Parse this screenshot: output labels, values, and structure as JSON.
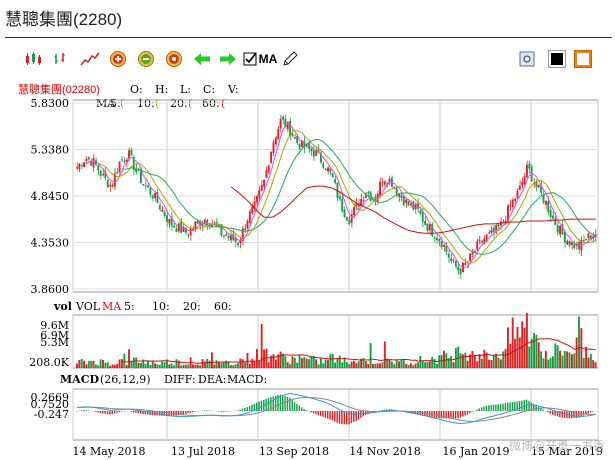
{
  "title": "慧聰集團(2280)",
  "toolbar": {
    "ma_label": "MA",
    "icons": [
      "candlestick-icon",
      "bar-icon",
      "line-icon",
      "zoom-in-icon",
      "zoom-out-icon",
      "reset-icon",
      "arrow-left-icon",
      "arrow-right-icon",
      "ma-checkbox-icon",
      "pencil-icon",
      "settings-icon",
      "black-theme-icon",
      "white-theme-icon"
    ]
  },
  "legend": {
    "stock": "慧聰集團(02280)",
    "o": "O:",
    "h": "H:",
    "l": "L:",
    "c": "C:",
    "v": "V:",
    "ma": "MA",
    "ma5": "5:",
    "ma10": "10:",
    "ma20": "20:",
    "ma60": "60:",
    "vol": "vol",
    "vol_label": "VOL",
    "vol_ma": "MA",
    "vol5": "5:",
    "vol10": "10:",
    "vol20": "20:",
    "vol60": "60:",
    "macd": "MACD",
    "macd_params": "(26,12,9)",
    "diff": "DIFF:",
    "dea": "DEA:",
    "macd_val": "MACD:"
  },
  "colors": {
    "up": "#e02020",
    "down": "#10a040",
    "ma5": "#ee44ee",
    "ma10": "#aaaa00",
    "ma20": "#22aa66",
    "ma60": "#d01010",
    "diff": "#3399cc",
    "dea": "#888888"
  },
  "chart_data": {
    "type": "line",
    "price_axis": [
      "5.8300",
      "5.3380",
      "4.8450",
      "4.3530",
      "3.8600"
    ],
    "price_range": [
      3.86,
      5.83
    ],
    "volume_axis": [
      "9.6M",
      "6.9M",
      "5.3M",
      "208.0K"
    ],
    "macd_axis": [
      "0.2669",
      "0.7520",
      "-0.247"
    ],
    "x_labels": [
      "14 May 2018",
      "13 Jul 2018",
      "13 Sep 2018",
      "14 Nov 2018",
      "16 Jan 2019",
      "15 Mar 2019"
    ],
    "price_anchors": [
      5.15,
      5.25,
      5.2,
      5.05,
      4.95,
      5.2,
      5.3,
      5.1,
      4.95,
      4.85,
      4.7,
      4.55,
      4.5,
      4.45,
      4.55,
      4.6,
      4.55,
      4.45,
      4.4,
      4.35,
      4.6,
      4.75,
      5.0,
      5.4,
      5.65,
      5.55,
      5.4,
      5.35,
      5.3,
      5.2,
      5.05,
      4.75,
      4.6,
      4.75,
      4.9,
      4.8,
      5.05,
      5.0,
      4.85,
      4.75,
      4.7,
      4.55,
      4.45,
      4.35,
      4.15,
      4.05,
      4.15,
      4.3,
      4.4,
      4.45,
      4.55,
      4.75,
      4.9,
      5.15,
      4.95,
      4.8,
      4.6,
      4.45,
      4.35,
      4.3,
      4.4,
      4.45
    ],
    "ma60_anchors": [
      null,
      null,
      null,
      null,
      null,
      null,
      null,
      null,
      null,
      null,
      null,
      null,
      null,
      null,
      null,
      null,
      null,
      null,
      4.95,
      4.88,
      4.8,
      4.7,
      4.62,
      4.62,
      4.68,
      4.76,
      4.85,
      4.93,
      4.95,
      4.95,
      4.93,
      4.88,
      4.82,
      4.76,
      4.72,
      4.68,
      4.62,
      4.57,
      4.52,
      4.48,
      4.46,
      4.45,
      4.45,
      4.46,
      4.48,
      4.5,
      4.52,
      4.54,
      4.55,
      4.55,
      4.56,
      4.57,
      4.57,
      4.58,
      4.58,
      4.58,
      4.59,
      4.59,
      4.6,
      4.6,
      4.6,
      4.6
    ],
    "volume_level": [
      0.12,
      0.1,
      0.14,
      0.11,
      0.09,
      0.13,
      0.1,
      0.15,
      0.12,
      0.1,
      0.09,
      0.13,
      0.11,
      0.08,
      0.1,
      0.12,
      0.09,
      0.11,
      0.1,
      0.14,
      0.18,
      0.22,
      0.3,
      0.25,
      0.2,
      0.18,
      0.15,
      0.16,
      0.14,
      0.12,
      0.2,
      0.15,
      0.12,
      0.14,
      0.16,
      0.13,
      0.15,
      0.12,
      0.11,
      0.13,
      0.15,
      0.14,
      0.18,
      0.2,
      0.24,
      0.3,
      0.35,
      0.28,
      0.22,
      0.25,
      0.3,
      0.55,
      0.7,
      0.75,
      0.45,
      0.32,
      0.25,
      0.3,
      0.35,
      0.4,
      0.28,
      0.22
    ],
    "macd_level": [
      0.05,
      0.06,
      0.05,
      0.03,
      0.01,
      0.02,
      0.03,
      0.01,
      -0.01,
      -0.03,
      -0.05,
      -0.07,
      -0.08,
      -0.08,
      -0.07,
      -0.06,
      -0.06,
      -0.07,
      -0.07,
      -0.06,
      -0.03,
      0.02,
      0.08,
      0.15,
      0.22,
      0.25,
      0.23,
      0.2,
      0.17,
      0.13,
      0.08,
      0.01,
      -0.04,
      -0.05,
      -0.03,
      -0.02,
      0.0,
      0.01,
      0.0,
      -0.02,
      -0.04,
      -0.07,
      -0.1,
      -0.13,
      -0.16,
      -0.18,
      -0.17,
      -0.14,
      -0.1,
      -0.07,
      -0.04,
      0.0,
      0.04,
      0.09,
      0.08,
      0.05,
      0.01,
      -0.03,
      -0.06,
      -0.08,
      -0.07,
      -0.05
    ]
  },
  "watermark": "微博@开勇一书香"
}
